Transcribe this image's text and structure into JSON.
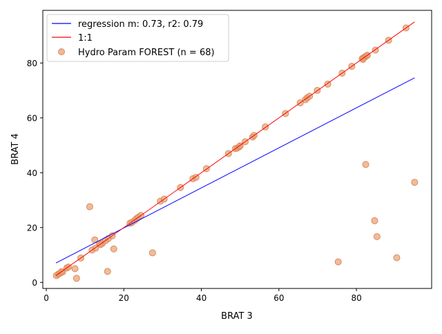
{
  "chart_data": {
    "type": "scatter",
    "title": "",
    "xlabel": "BRAT 3",
    "ylabel": "BRAT 4",
    "xlim": [
      -0.9,
      99.4
    ],
    "ylim": [
      -2.2,
      99.2
    ],
    "xticks": [
      0,
      20,
      40,
      60,
      80
    ],
    "yticks": [
      0,
      20,
      40,
      60,
      80
    ],
    "grid": false,
    "legend_position": "top-left",
    "colors": {
      "regression": "#0000ff",
      "identity": "#ff0000",
      "points": "#e8a071",
      "points_edge": "#d98c5f"
    },
    "series": [
      {
        "kind": "line",
        "name": "regression m: 0.73, r2: 0.79",
        "x": [
          2.5,
          95.0
        ],
        "y": [
          7.1,
          74.6
        ]
      },
      {
        "kind": "line",
        "name": "1:1",
        "x": [
          2.5,
          95.0
        ],
        "y": [
          2.5,
          95.0
        ]
      },
      {
        "kind": "scatter",
        "name": "Hydro Param FOREST (n = 68)",
        "points": [
          [
            2.6,
            2.5
          ],
          [
            3.1,
            3.0
          ],
          [
            3.5,
            3.3
          ],
          [
            4.2,
            3.8
          ],
          [
            5.3,
            5.3
          ],
          [
            5.7,
            5.6
          ],
          [
            7.4,
            5.0
          ],
          [
            7.8,
            1.5
          ],
          [
            8.9,
            8.9
          ],
          [
            11.2,
            27.6
          ],
          [
            11.8,
            11.8
          ],
          [
            12.5,
            15.5
          ],
          [
            12.7,
            12.5
          ],
          [
            13.7,
            14.0
          ],
          [
            14.5,
            14.3
          ],
          [
            15.3,
            15.3
          ],
          [
            15.8,
            4.0
          ],
          [
            16.0,
            16.0
          ],
          [
            17.0,
            17.0
          ],
          [
            17.4,
            12.2
          ],
          [
            21.6,
            21.6
          ],
          [
            22.1,
            21.9
          ],
          [
            22.8,
            22.6
          ],
          [
            23.3,
            23.3
          ],
          [
            23.8,
            23.8
          ],
          [
            24.4,
            24.4
          ],
          [
            27.4,
            10.8
          ],
          [
            29.4,
            29.6
          ],
          [
            30.4,
            30.4
          ],
          [
            34.6,
            34.6
          ],
          [
            37.8,
            37.8
          ],
          [
            38.6,
            38.3
          ],
          [
            41.3,
            41.5
          ],
          [
            47.0,
            47.0
          ],
          [
            48.8,
            48.8
          ],
          [
            49.3,
            49.0
          ],
          [
            49.8,
            49.5
          ],
          [
            51.3,
            51.3
          ],
          [
            53.2,
            53.0
          ],
          [
            53.6,
            53.6
          ],
          [
            56.5,
            56.7
          ],
          [
            61.7,
            61.6
          ],
          [
            65.5,
            65.5
          ],
          [
            66.8,
            66.6
          ],
          [
            67.3,
            67.3
          ],
          [
            67.9,
            67.9
          ],
          [
            69.9,
            70.0
          ],
          [
            72.6,
            72.3
          ],
          [
            75.3,
            7.5
          ],
          [
            76.3,
            76.3
          ],
          [
            78.8,
            78.8
          ],
          [
            81.5,
            81.6
          ],
          [
            81.9,
            82.0
          ],
          [
            82.2,
            82.2
          ],
          [
            82.4,
            43.0
          ],
          [
            82.6,
            82.6
          ],
          [
            82.8,
            82.8
          ],
          [
            84.7,
            22.5
          ],
          [
            84.9,
            84.7
          ],
          [
            85.3,
            16.7
          ],
          [
            88.3,
            88.3
          ],
          [
            90.4,
            9.0
          ],
          [
            92.8,
            92.8
          ],
          [
            95.0,
            36.5
          ],
          [
            3.9,
            3.9
          ],
          [
            14.0,
            13.8
          ],
          [
            50.0,
            49.8
          ],
          [
            81.7,
            81.3
          ]
        ]
      }
    ]
  }
}
